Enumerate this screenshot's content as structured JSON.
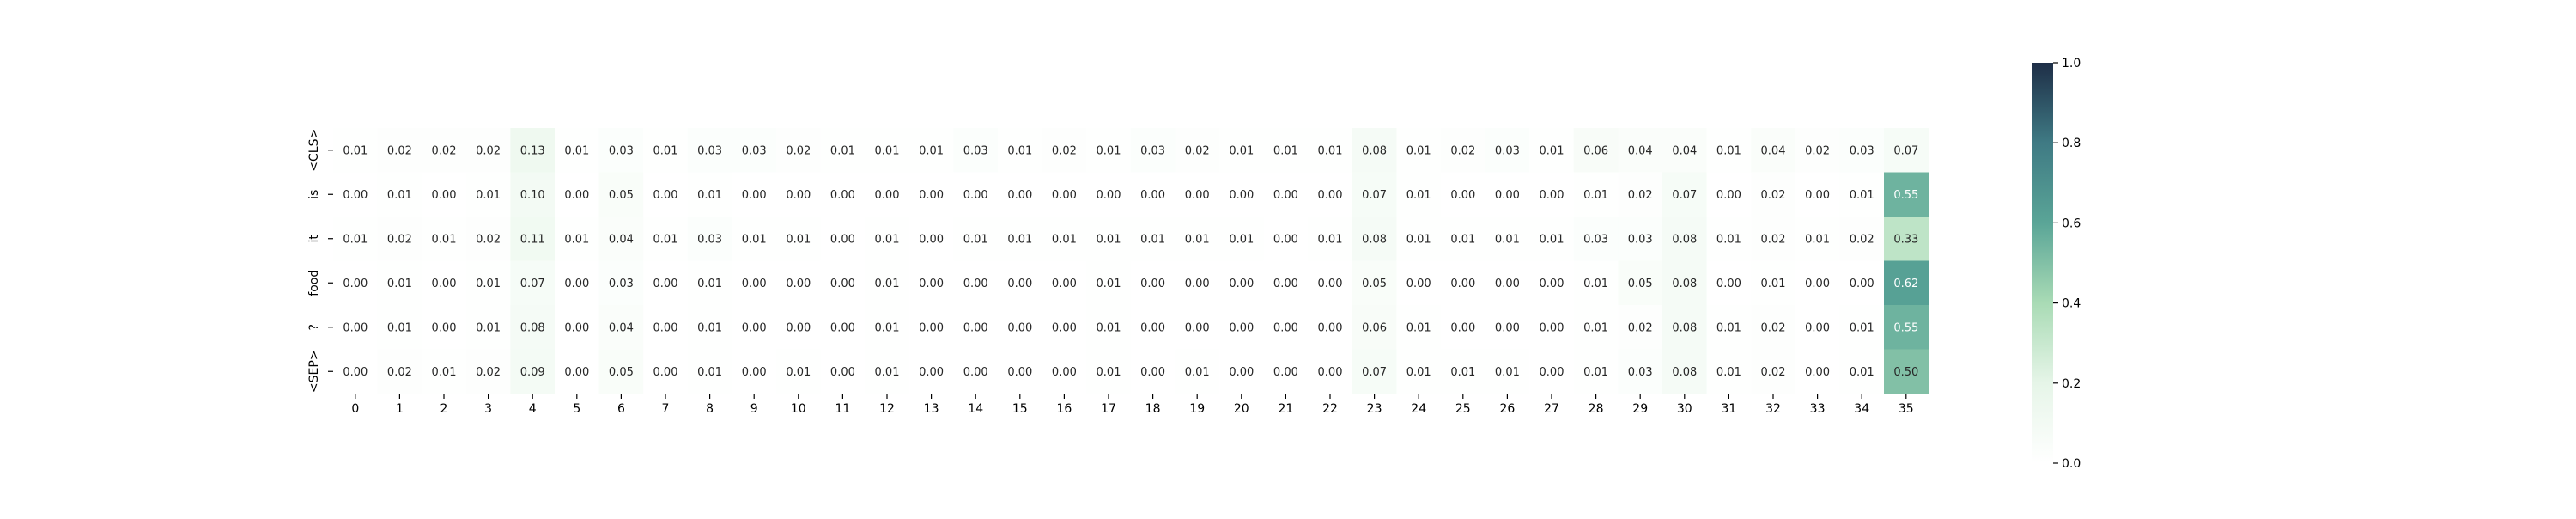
{
  "chart_data": {
    "type": "heatmap",
    "x_labels": [
      "0",
      "1",
      "2",
      "3",
      "4",
      "5",
      "6",
      "7",
      "8",
      "9",
      "10",
      "11",
      "12",
      "13",
      "14",
      "15",
      "16",
      "17",
      "18",
      "19",
      "20",
      "21",
      "22",
      "23",
      "24",
      "25",
      "26",
      "27",
      "28",
      "29",
      "30",
      "31",
      "32",
      "33",
      "34",
      "35"
    ],
    "y_labels": [
      "<CLS>",
      "is",
      "it",
      "food",
      "?",
      "<SEP>"
    ],
    "values": [
      [
        0.01,
        0.02,
        0.02,
        0.02,
        0.13,
        0.01,
        0.03,
        0.01,
        0.03,
        0.03,
        0.02,
        0.01,
        0.01,
        0.01,
        0.03,
        0.01,
        0.02,
        0.01,
        0.03,
        0.02,
        0.01,
        0.01,
        0.01,
        0.08,
        0.01,
        0.02,
        0.03,
        0.01,
        0.06,
        0.04,
        0.04,
        0.01,
        0.04,
        0.02,
        0.03,
        0.07
      ],
      [
        0.0,
        0.01,
        0.0,
        0.01,
        0.1,
        0.0,
        0.05,
        0.0,
        0.01,
        0.0,
        0.0,
        0.0,
        0.0,
        0.0,
        0.0,
        0.0,
        0.0,
        0.0,
        0.0,
        0.0,
        0.0,
        0.0,
        0.0,
        0.07,
        0.01,
        0.0,
        0.0,
        0.0,
        0.01,
        0.02,
        0.07,
        0.0,
        0.02,
        0.0,
        0.01,
        0.55
      ],
      [
        0.01,
        0.02,
        0.01,
        0.02,
        0.11,
        0.01,
        0.04,
        0.01,
        0.03,
        0.01,
        0.01,
        0.0,
        0.01,
        0.0,
        0.01,
        0.01,
        0.01,
        0.01,
        0.01,
        0.01,
        0.01,
        0.0,
        0.01,
        0.08,
        0.01,
        0.01,
        0.01,
        0.01,
        0.03,
        0.03,
        0.08,
        0.01,
        0.02,
        0.01,
        0.02,
        0.33
      ],
      [
        0.0,
        0.01,
        0.0,
        0.01,
        0.07,
        0.0,
        0.03,
        0.0,
        0.01,
        0.0,
        0.0,
        0.0,
        0.01,
        0.0,
        0.0,
        0.0,
        0.0,
        0.01,
        0.0,
        0.0,
        0.0,
        0.0,
        0.0,
        0.05,
        0.0,
        0.0,
        0.0,
        0.0,
        0.01,
        0.05,
        0.08,
        0.0,
        0.01,
        0.0,
        0.0,
        0.62
      ],
      [
        0.0,
        0.01,
        0.0,
        0.01,
        0.08,
        0.0,
        0.04,
        0.0,
        0.01,
        0.0,
        0.0,
        0.0,
        0.01,
        0.0,
        0.0,
        0.0,
        0.0,
        0.01,
        0.0,
        0.0,
        0.0,
        0.0,
        0.0,
        0.06,
        0.01,
        0.0,
        0.0,
        0.0,
        0.01,
        0.02,
        0.08,
        0.01,
        0.02,
        0.0,
        0.01,
        0.55
      ],
      [
        0.0,
        0.02,
        0.01,
        0.02,
        0.09,
        0.0,
        0.05,
        0.0,
        0.01,
        0.0,
        0.01,
        0.0,
        0.01,
        0.0,
        0.0,
        0.0,
        0.0,
        0.01,
        0.0,
        0.01,
        0.0,
        0.0,
        0.0,
        0.07,
        0.01,
        0.01,
        0.01,
        0.0,
        0.01,
        0.03,
        0.08,
        0.01,
        0.02,
        0.0,
        0.01,
        0.5
      ]
    ],
    "colorbar": {
      "min": 0.0,
      "max": 1.0,
      "ticks": [
        "0.0",
        "0.2",
        "0.4",
        "0.6",
        "0.8",
        "1.0"
      ],
      "colors": [
        "#ffffff",
        "#e6f5e8",
        "#a9dbb5",
        "#5aa597",
        "#3f7a84",
        "#1e2e47"
      ]
    },
    "title": "",
    "xlabel": "",
    "ylabel": "",
    "grid": false
  }
}
